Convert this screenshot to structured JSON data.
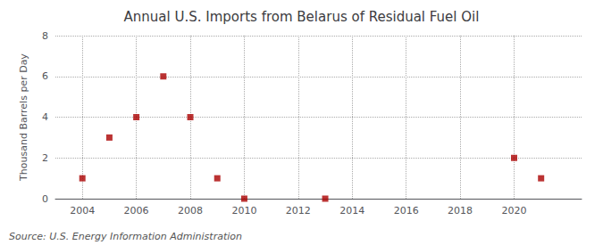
{
  "chart_data": {
    "type": "scatter",
    "title": "Annual U.S. Imports from Belarus of Residual Fuel Oil",
    "ylabel": "Thousand Barrels per Day",
    "annotations": [
      "Source: U.S. Energy Information Administration"
    ],
    "x": [
      2004,
      2005,
      2006,
      2007,
      2008,
      2009,
      2010,
      2013,
      2020,
      2021
    ],
    "values": [
      1,
      3,
      4,
      6,
      4,
      1,
      0,
      0,
      2,
      1
    ],
    "color": "#aa0000",
    "marker": "square",
    "xlim": [
      2003.0,
      2022.5
    ],
    "xticks": [
      2004,
      2006,
      2008,
      2010,
      2012,
      2014,
      2016,
      2018,
      2020
    ],
    "ylim": [
      0,
      8
    ],
    "yticks": [
      0,
      2,
      4,
      6,
      8
    ],
    "grid": true
  }
}
